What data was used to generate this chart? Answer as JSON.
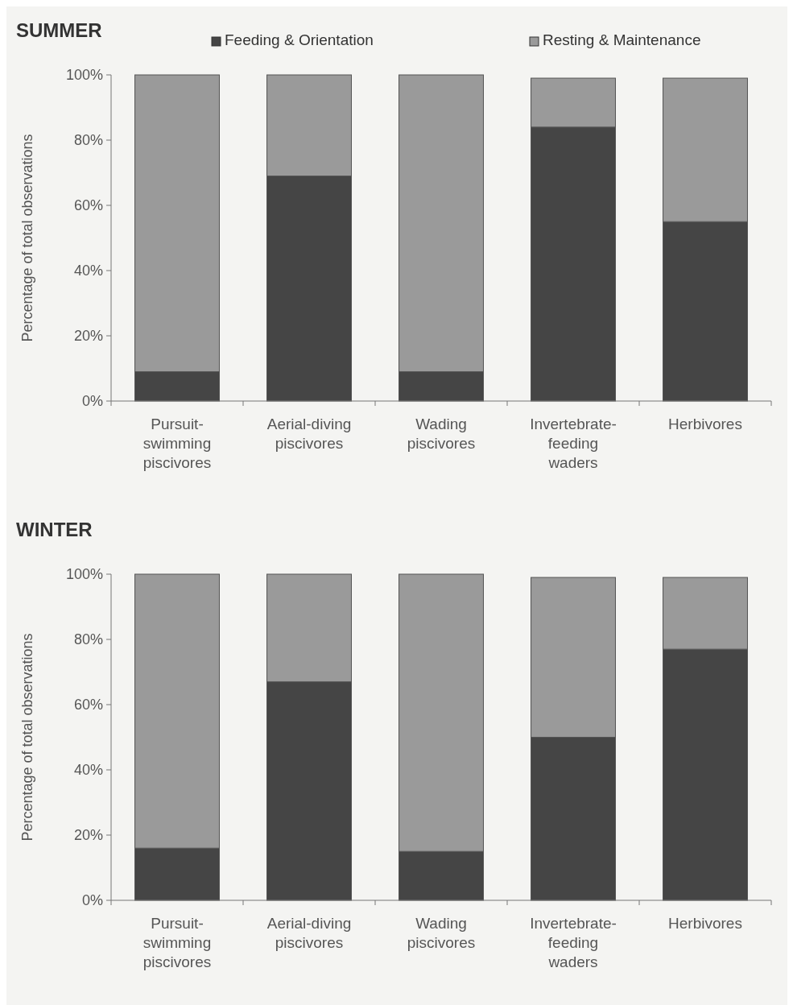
{
  "chart_data": [
    {
      "type": "bar",
      "title": "SUMMER",
      "ylabel": "Percentage of total observations",
      "stacked": true,
      "legend": "top",
      "grid": false,
      "categories": [
        "Pursuit-\nswimming\npiscivores",
        "Aerial-diving\npiscivores",
        "Wading\npiscivores",
        "Invertebrate-\nfeeding\nwaders",
        "Herbivores"
      ],
      "ylim": [
        0,
        100
      ],
      "yticks": [
        {
          "value": 0,
          "label": "0%"
        },
        {
          "value": 20,
          "label": "20%"
        },
        {
          "value": 40,
          "label": "40%"
        },
        {
          "value": 60,
          "label": "60%"
        },
        {
          "value": 80,
          "label": "80%"
        },
        {
          "value": 100,
          "label": "100%"
        }
      ],
      "series": [
        {
          "name": "Feeding & Orientation",
          "color": "#454545",
          "values": [
            9,
            69,
            9,
            84,
            55
          ]
        },
        {
          "name": "Resting & Maintenance",
          "color": "#9a9a9a",
          "values": [
            91,
            31,
            91,
            15,
            44
          ]
        }
      ]
    },
    {
      "type": "bar",
      "title": "WINTER",
      "ylabel": "Percentage of total observations",
      "stacked": true,
      "grid": false,
      "categories": [
        "Pursuit-\nswimming\npiscivores",
        "Aerial-diving\npiscivores",
        "Wading\npiscivores",
        "Invertebrate-\nfeeding\nwaders",
        "Herbivores"
      ],
      "ylim": [
        0,
        100
      ],
      "yticks": [
        {
          "value": 0,
          "label": "0%"
        },
        {
          "value": 20,
          "label": "20%"
        },
        {
          "value": 40,
          "label": "40%"
        },
        {
          "value": 60,
          "label": "60%"
        },
        {
          "value": 80,
          "label": "80%"
        },
        {
          "value": 100,
          "label": "100%"
        }
      ],
      "series": [
        {
          "color": "#454545",
          "values": [
            16,
            67,
            15,
            50,
            77
          ]
        },
        {
          "color": "#9a9a9a",
          "values": [
            84,
            33,
            85,
            49,
            22
          ]
        }
      ]
    }
  ]
}
